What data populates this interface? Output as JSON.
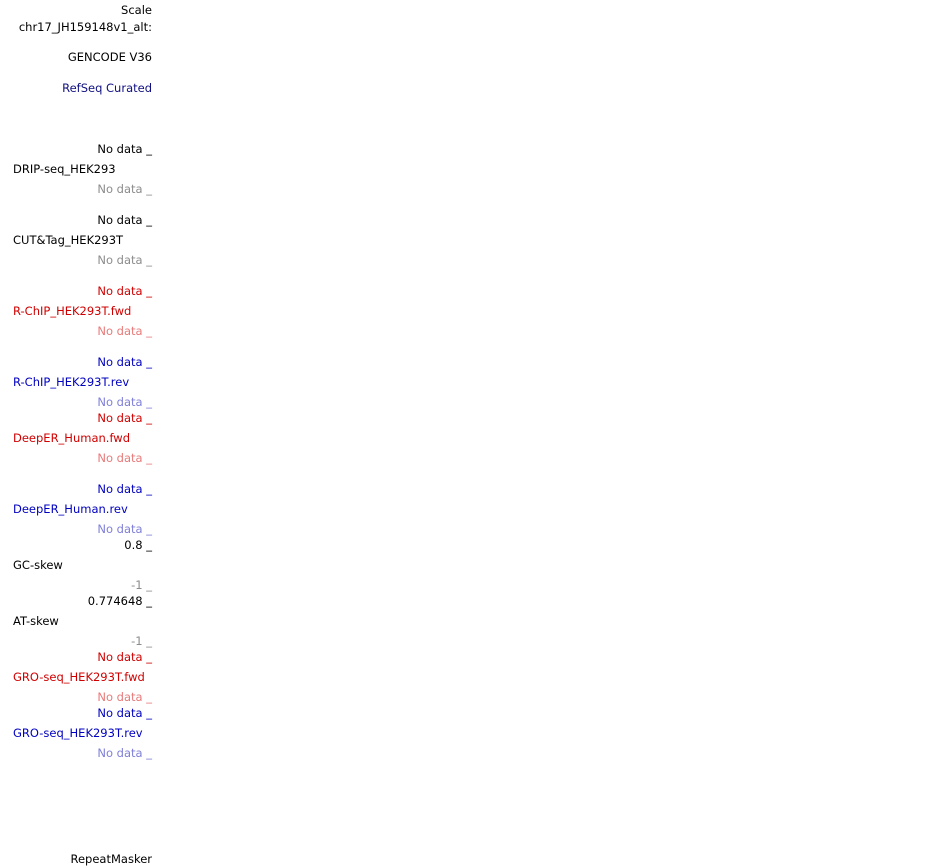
{
  "header": {
    "scale": "Scale",
    "position": "chr17_JH159148v1_alt:"
  },
  "tracks": [
    {
      "label": "GENCODE V36"
    },
    {
      "label": "RefSeq Curated"
    }
  ],
  "signal_tracks": [
    {
      "name": "DRIP-seq_HEK293",
      "max": "No data _",
      "min": "No data _"
    },
    {
      "name": "CUT&Tag_HEK293T",
      "max": "No data _",
      "min": "No data _"
    },
    {
      "name": "R-ChIP_HEK293T.fwd",
      "max": "No data _",
      "min": "No data _"
    },
    {
      "name": "R-ChIP_HEK293T.rev",
      "max": "No data _",
      "min": "No data _"
    },
    {
      "name": "DeepER_Human.fwd",
      "max": "No data _",
      "min": "No data _"
    },
    {
      "name": "DeepER_Human.rev",
      "max": "No data _",
      "min": "No data _"
    },
    {
      "name": "GC-skew",
      "max": "0.8 _",
      "min": "-1 _"
    },
    {
      "name": "AT-skew",
      "max": "0.774648 _",
      "min": "-1 _"
    },
    {
      "name": "GRO-seq_HEK293T.fwd",
      "max": "No data _",
      "min": "No data _"
    },
    {
      "name": "GRO-seq_HEK293T.rev",
      "max": "No data _",
      "min": "No data _"
    }
  ],
  "repeat_track": "RepeatMasker"
}
